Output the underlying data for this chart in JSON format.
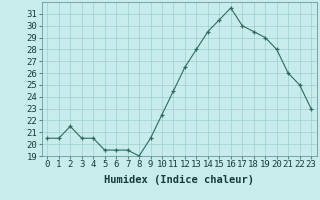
{
  "x": [
    0,
    1,
    2,
    3,
    4,
    5,
    6,
    7,
    8,
    9,
    10,
    11,
    12,
    13,
    14,
    15,
    16,
    17,
    18,
    19,
    20,
    21,
    22,
    23
  ],
  "y": [
    20.5,
    20.5,
    21.5,
    20.5,
    20.5,
    19.5,
    19.5,
    19.5,
    19.0,
    20.5,
    22.5,
    24.5,
    26.5,
    28.0,
    29.5,
    30.5,
    31.5,
    30.0,
    29.5,
    29.0,
    28.0,
    26.0,
    25.0,
    23.0
  ],
  "line_color": "#2e6b5e",
  "marker": "+",
  "bg_color": "#c8ecec",
  "grid_color": "#9ecece",
  "xlabel": "Humidex (Indice chaleur)",
  "ylim": [
    19,
    32
  ],
  "xlim": [
    -0.5,
    23.5
  ],
  "yticks": [
    19,
    20,
    21,
    22,
    23,
    24,
    25,
    26,
    27,
    28,
    29,
    30,
    31
  ],
  "xticks": [
    0,
    1,
    2,
    3,
    4,
    5,
    6,
    7,
    8,
    9,
    10,
    11,
    12,
    13,
    14,
    15,
    16,
    17,
    18,
    19,
    20,
    21,
    22,
    23
  ],
  "tick_fontsize": 6.5,
  "xlabel_fontsize": 7.5
}
